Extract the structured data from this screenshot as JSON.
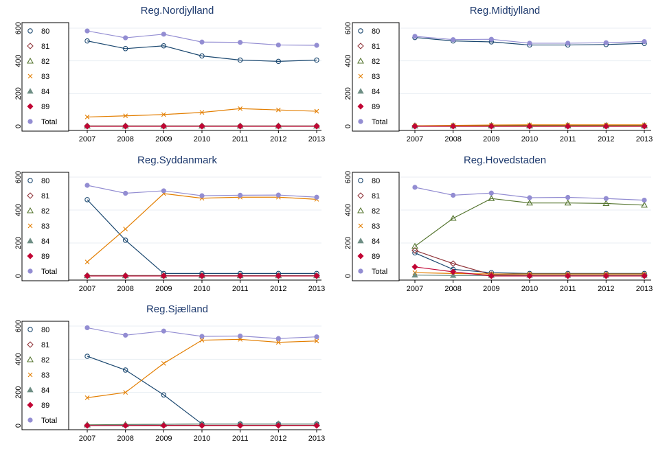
{
  "chart_data": [
    {
      "type": "line",
      "title": "Reg.Nordjylland",
      "x": [
        2007,
        2008,
        2009,
        2010,
        2011,
        2012,
        2013
      ],
      "ylim": [
        0,
        600
      ],
      "yticks": [
        0,
        200,
        400,
        600
      ],
      "grid": true,
      "legend": "top-left",
      "series": [
        {
          "name": "80",
          "color": "#1a476f",
          "marker": "circle-hollow",
          "values": [
            522,
            475,
            492,
            430,
            405,
            397,
            405
          ]
        },
        {
          "name": "81",
          "color": "#90353b",
          "marker": "diamond-hollow",
          "values": [
            2,
            2,
            2,
            2,
            2,
            2,
            2
          ]
        },
        {
          "name": "82",
          "color": "#55752f",
          "marker": "triangle-hollow",
          "values": [
            2,
            2,
            2,
            2,
            2,
            2,
            2
          ]
        },
        {
          "name": "83",
          "color": "#e37e00",
          "marker": "x",
          "values": [
            57,
            64,
            72,
            85,
            108,
            100,
            92
          ]
        },
        {
          "name": "84",
          "color": "#6e8e84",
          "marker": "triangle",
          "values": [
            1,
            1,
            1,
            1,
            1,
            1,
            1
          ]
        },
        {
          "name": "89",
          "color": "#c10534",
          "marker": "diamond",
          "values": [
            0,
            0,
            0,
            0,
            0,
            0,
            0
          ]
        },
        {
          "name": "Total",
          "color": "#938dd2",
          "marker": "circle",
          "values": [
            583,
            541,
            563,
            515,
            513,
            497,
            495
          ]
        }
      ]
    },
    {
      "type": "line",
      "title": "Reg.Midtjylland",
      "x": [
        2007,
        2008,
        2009,
        2010,
        2011,
        2012,
        2013
      ],
      "ylim": [
        0,
        600
      ],
      "yticks": [
        0,
        200,
        400,
        600
      ],
      "grid": true,
      "legend": "top-left",
      "series": [
        {
          "name": "80",
          "color": "#1a476f",
          "marker": "circle-hollow",
          "values": [
            543,
            522,
            516,
            497,
            497,
            500,
            507
          ]
        },
        {
          "name": "81",
          "color": "#90353b",
          "marker": "diamond-hollow",
          "values": [
            2,
            3,
            3,
            3,
            3,
            3,
            3
          ]
        },
        {
          "name": "82",
          "color": "#55752f",
          "marker": "triangle-hollow",
          "values": [
            3,
            4,
            5,
            5,
            5,
            5,
            5
          ]
        },
        {
          "name": "83",
          "color": "#e37e00",
          "marker": "x",
          "values": [
            3,
            6,
            8,
            9,
            9,
            9,
            9
          ]
        },
        {
          "name": "84",
          "color": "#6e8e84",
          "marker": "triangle",
          "values": [
            1,
            1,
            1,
            1,
            1,
            1,
            1
          ]
        },
        {
          "name": "89",
          "color": "#c10534",
          "marker": "diamond",
          "values": [
            0,
            0,
            0,
            0,
            0,
            0,
            0
          ]
        },
        {
          "name": "Total",
          "color": "#938dd2",
          "marker": "circle",
          "values": [
            550,
            530,
            532,
            508,
            508,
            511,
            518
          ]
        }
      ]
    },
    {
      "type": "line",
      "title": "Reg.Syddanmark",
      "x": [
        2007,
        2008,
        2009,
        2010,
        2011,
        2012,
        2013
      ],
      "ylim": [
        0,
        600
      ],
      "yticks": [
        0,
        200,
        400,
        600
      ],
      "grid": true,
      "legend": "top-left",
      "series": [
        {
          "name": "80",
          "color": "#1a476f",
          "marker": "circle-hollow",
          "values": [
            463,
            217,
            15,
            15,
            15,
            15,
            15
          ]
        },
        {
          "name": "81",
          "color": "#90353b",
          "marker": "diamond-hollow",
          "values": [
            2,
            2,
            2,
            2,
            2,
            2,
            2
          ]
        },
        {
          "name": "82",
          "color": "#55752f",
          "marker": "triangle-hollow",
          "values": [
            2,
            2,
            2,
            2,
            2,
            2,
            2
          ]
        },
        {
          "name": "83",
          "color": "#e37e00",
          "marker": "x",
          "values": [
            85,
            285,
            500,
            472,
            478,
            478,
            465
          ]
        },
        {
          "name": "84",
          "color": "#6e8e84",
          "marker": "triangle",
          "values": [
            1,
            1,
            1,
            1,
            1,
            1,
            1
          ]
        },
        {
          "name": "89",
          "color": "#c10534",
          "marker": "diamond",
          "values": [
            0,
            0,
            0,
            0,
            0,
            0,
            0
          ]
        },
        {
          "name": "Total",
          "color": "#938dd2",
          "marker": "circle",
          "values": [
            550,
            502,
            517,
            487,
            490,
            491,
            478
          ]
        }
      ]
    },
    {
      "type": "line",
      "title": "Reg.Hovedstaden",
      "x": [
        2007,
        2008,
        2009,
        2010,
        2011,
        2012,
        2013
      ],
      "ylim": [
        0,
        600
      ],
      "yticks": [
        0,
        200,
        400,
        600
      ],
      "grid": true,
      "legend": "top-left",
      "series": [
        {
          "name": "80",
          "color": "#1a476f",
          "marker": "circle-hollow",
          "values": [
            140,
            40,
            20,
            15,
            15,
            15,
            15
          ]
        },
        {
          "name": "81",
          "color": "#90353b",
          "marker": "diamond-hollow",
          "values": [
            155,
            75,
            8,
            5,
            5,
            5,
            5
          ]
        },
        {
          "name": "82",
          "color": "#55752f",
          "marker": "triangle-hollow",
          "values": [
            180,
            350,
            470,
            443,
            443,
            440,
            430
          ]
        },
        {
          "name": "83",
          "color": "#e37e00",
          "marker": "x",
          "values": [
            20,
            15,
            12,
            12,
            12,
            12,
            12
          ]
        },
        {
          "name": "84",
          "color": "#6e8e84",
          "marker": "triangle",
          "values": [
            5,
            3,
            3,
            3,
            3,
            3,
            3
          ]
        },
        {
          "name": "89",
          "color": "#c10534",
          "marker": "diamond",
          "values": [
            55,
            25,
            0,
            0,
            0,
            0,
            0
          ]
        },
        {
          "name": "Total",
          "color": "#938dd2",
          "marker": "circle",
          "values": [
            538,
            490,
            503,
            475,
            477,
            470,
            460
          ]
        }
      ]
    },
    {
      "type": "line",
      "title": "Reg.Sjælland",
      "x": [
        2007,
        2008,
        2009,
        2010,
        2011,
        2012,
        2013
      ],
      "ylim": [
        0,
        600
      ],
      "yticks": [
        0,
        200,
        400,
        600
      ],
      "grid": true,
      "legend": "top-left",
      "series": [
        {
          "name": "80",
          "color": "#1a476f",
          "marker": "circle-hollow",
          "values": [
            418,
            335,
            185,
            10,
            10,
            10,
            10
          ]
        },
        {
          "name": "81",
          "color": "#90353b",
          "marker": "diamond-hollow",
          "values": [
            2,
            2,
            2,
            2,
            2,
            2,
            2
          ]
        },
        {
          "name": "82",
          "color": "#55752f",
          "marker": "triangle-hollow",
          "values": [
            5,
            7,
            8,
            10,
            10,
            10,
            10
          ]
        },
        {
          "name": "83",
          "color": "#e37e00",
          "marker": "x",
          "values": [
            168,
            200,
            375,
            515,
            520,
            502,
            510
          ]
        },
        {
          "name": "84",
          "color": "#6e8e84",
          "marker": "triangle",
          "values": [
            3,
            5,
            8,
            10,
            10,
            10,
            10
          ]
        },
        {
          "name": "89",
          "color": "#c10534",
          "marker": "diamond",
          "values": [
            0,
            0,
            0,
            0,
            0,
            0,
            0
          ]
        },
        {
          "name": "Total",
          "color": "#938dd2",
          "marker": "circle",
          "values": [
            590,
            545,
            570,
            538,
            540,
            525,
            535
          ]
        }
      ]
    }
  ]
}
